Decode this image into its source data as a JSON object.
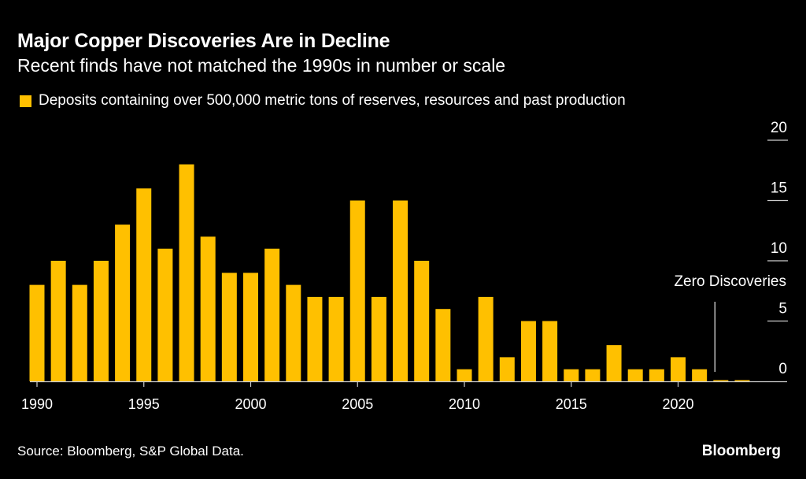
{
  "header": {
    "title": "Major Copper Discoveries Are in Decline",
    "subtitle": "Recent finds have not matched the 1990s in number or scale"
  },
  "footer": {
    "source": "Source: Bloomberg, S&P Global Data.",
    "brand": "Bloomberg"
  },
  "colors": {
    "background": "#000000",
    "bar": "#FFC000",
    "axis": "#CCCCCC",
    "text": "#FFFFFF"
  },
  "chart_data": {
    "type": "bar",
    "title": "Major Copper Discoveries Are in Decline",
    "subtitle": "Recent finds have not matched the 1990s in number or scale",
    "xlabel": "",
    "ylabel": "",
    "ylim": [
      0,
      20
    ],
    "y_ticks": [
      0,
      5,
      10,
      15,
      20
    ],
    "y_axis_side": "right",
    "x_ticks": [
      "1990",
      "1995",
      "2000",
      "2005",
      "2010",
      "2015",
      "2020"
    ],
    "grid": false,
    "legend": {
      "placement": "top-left",
      "entries": [
        "Deposits containing over 500,000 metric tons of reserves, resources and past production"
      ]
    },
    "categories": [
      "1990",
      "1991",
      "1992",
      "1993",
      "1994",
      "1995",
      "1996",
      "1997",
      "1998",
      "1999",
      "2000",
      "2001",
      "2002",
      "2003",
      "2004",
      "2005",
      "2006",
      "2007",
      "2008",
      "2009",
      "2010",
      "2011",
      "2012",
      "2013",
      "2014",
      "2015",
      "2016",
      "2017",
      "2018",
      "2019",
      "2020",
      "2021",
      "2022",
      "2023"
    ],
    "series": [
      {
        "name": "Deposits containing over 500,000 metric tons of reserves, resources and past production",
        "values": [
          8,
          10,
          8,
          10,
          13,
          16,
          11,
          18,
          12,
          9,
          9,
          11,
          8,
          7,
          7,
          15,
          7,
          15,
          10,
          6,
          1,
          7,
          2,
          5,
          5,
          1,
          1,
          3,
          1,
          1,
          2,
          1,
          0,
          0
        ]
      }
    ],
    "annotations": [
      {
        "text": "Zero Discoveries",
        "x_range": [
          "2022",
          "2023"
        ]
      }
    ]
  }
}
